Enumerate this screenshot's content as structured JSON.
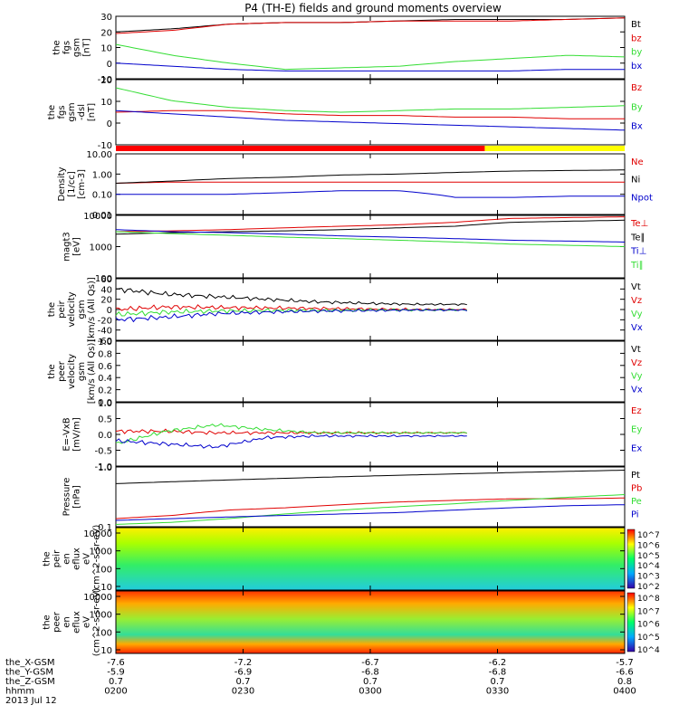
{
  "title": "P4 (TH-E) fields and ground moments overview",
  "colors": {
    "black": "#000000",
    "red": "#e00000",
    "green": "#33dd33",
    "blue": "#0000cc"
  },
  "chart_data": {
    "type": "line",
    "time_axis": {
      "range": [
        "0200",
        "0400"
      ],
      "ticks": [
        "0200",
        "0230",
        "0300",
        "0330",
        "0400"
      ]
    },
    "panels": [
      {
        "id": "fgs-gsm",
        "ylabel_lines": [
          "the",
          "fgs",
          "gsm",
          "[nT]"
        ],
        "ylim": [
          -10,
          30
        ],
        "yticks": [
          "30",
          "20",
          "10",
          "0",
          "-10"
        ],
        "series": [
          {
            "name": "Bt",
            "color": "black",
            "values": [
              20,
              22,
              25,
              26,
              26,
              27,
              28,
              28,
              28,
              29
            ]
          },
          {
            "name": "bz",
            "color": "red",
            "values": [
              19,
              21,
              25,
              26,
              26,
              27,
              27,
              27,
              28,
              29
            ]
          },
          {
            "name": "by",
            "color": "green",
            "values": [
              12,
              5,
              0,
              -4,
              -3,
              -2,
              1,
              3,
              5,
              4
            ]
          },
          {
            "name": "bx",
            "color": "blue",
            "values": [
              0,
              -2,
              -4,
              -5,
              -5,
              -5,
              -5,
              -5,
              -4,
              -4
            ]
          }
        ]
      },
      {
        "id": "fgs-gsm-dsl",
        "ylabel_lines": [
          "the",
          "fgs",
          "gsm",
          "-dsl",
          "[nT]"
        ],
        "ylim": [
          -15,
          25
        ],
        "yticks": [
          "20",
          "10",
          "0",
          "-10"
        ],
        "series": [
          {
            "name": "Bz",
            "color": "red",
            "values": [
              5,
              6,
              6,
              4,
              3,
              3,
              2,
              2,
              1,
              1
            ]
          },
          {
            "name": "By",
            "color": "green",
            "values": [
              20,
              12,
              8,
              6,
              5,
              6,
              7,
              7,
              8,
              9
            ]
          },
          {
            "name": "Bx",
            "color": "blue",
            "values": [
              6,
              4,
              2,
              0,
              -1,
              -2,
              -3,
              -4,
              -5,
              -6
            ]
          }
        ]
      },
      {
        "id": "density",
        "ylabel_lines": [
          "Density",
          "[1/cc]",
          "[cm-3]"
        ],
        "ylim_log": [
          0.01,
          10
        ],
        "yticks": [
          "10.00",
          "1.00",
          "0.10",
          "0.01"
        ],
        "series": [
          {
            "name": "Ne",
            "color": "red",
            "values": [
              0.35,
              0.4,
              0.4,
              0.4,
              0.4,
              0.4,
              0.4,
              0.4,
              0.4,
              0.4
            ]
          },
          {
            "name": "Ni",
            "color": "black",
            "values": [
              0.35,
              0.45,
              0.6,
              0.7,
              0.9,
              1.0,
              1.2,
              1.4,
              1.5,
              1.6
            ]
          },
          {
            "name": "Npot",
            "color": "blue",
            "values": [
              0.1,
              0.1,
              0.1,
              0.12,
              0.15,
              0.15,
              0.07,
              0.07,
              0.08,
              0.08
            ]
          }
        ]
      },
      {
        "id": "temperature",
        "ylabel_lines": [
          "magt3",
          "[eV]"
        ],
        "ylim_log": [
          100,
          10000
        ],
        "yticks": [
          "10000",
          "1000",
          "100"
        ],
        "series": [
          {
            "name": "Te⊥",
            "color": "red",
            "values": [
              3000,
              3200,
              3500,
              4000,
              4500,
              5000,
              6000,
              8000,
              8500,
              9000
            ]
          },
          {
            "name": "Te∥",
            "color": "black",
            "values": [
              2500,
              2800,
              3000,
              3200,
              3500,
              4000,
              4500,
              6000,
              6500,
              7000
            ]
          },
          {
            "name": "Ti⊥",
            "color": "blue",
            "values": [
              3500,
              3000,
              2800,
              2500,
              2200,
              2000,
              1800,
              1600,
              1500,
              1400
            ]
          },
          {
            "name": "Ti∥",
            "color": "green",
            "values": [
              3000,
              2600,
              2300,
              2000,
              1800,
              1600,
              1400,
              1200,
              1100,
              1000
            ]
          }
        ]
      },
      {
        "id": "peir-velocity",
        "ylabel_lines": [
          "the",
          "peir",
          "velocity",
          "gsm",
          "[km/s (All Qs)]"
        ],
        "ylim": [
          -60,
          60
        ],
        "yticks": [
          "60",
          "40",
          "20",
          "0",
          "-20",
          "-40",
          "-60"
        ],
        "series": [
          {
            "name": "Vt",
            "color": "black",
            "values": [
              40,
              30,
              25,
              20,
              15,
              12,
              10,
              10
            ]
          },
          {
            "name": "Vz",
            "color": "red",
            "values": [
              0,
              5,
              4,
              3,
              2,
              1,
              0,
              0
            ]
          },
          {
            "name": "Vy",
            "color": "green",
            "values": [
              -10,
              -5,
              -3,
              -2,
              -2,
              -1,
              -1,
              -1
            ]
          },
          {
            "name": "Vx",
            "color": "blue",
            "values": [
              -20,
              -15,
              -8,
              -5,
              -3,
              -2,
              -1,
              -1
            ]
          }
        ]
      },
      {
        "id": "peer-velocity",
        "ylabel_lines": [
          "the",
          "peer",
          "velocity",
          "gsm",
          "[km/s (All Qs)]"
        ],
        "ylim": [
          0,
          1
        ],
        "yticks": [
          "1.0",
          "0.8",
          "0.6",
          "0.4",
          "0.2",
          "0.0"
        ],
        "series": [
          {
            "name": "Vt",
            "color": "black",
            "values": []
          },
          {
            "name": "Vz",
            "color": "red",
            "values": []
          },
          {
            "name": "Vy",
            "color": "green",
            "values": []
          },
          {
            "name": "Vx",
            "color": "blue",
            "values": []
          }
        ]
      },
      {
        "id": "efield",
        "ylabel_lines": [
          "E=-VxB",
          "[mV/m]"
        ],
        "ylim": [
          -1,
          1
        ],
        "yticks": [
          "1.0",
          "0.5",
          "0.0",
          "-0.5",
          "-1.0"
        ],
        "series": [
          {
            "name": "Ez",
            "color": "red",
            "values": [
              0.1,
              0.1,
              0.05,
              0.05,
              0.05,
              0.05,
              0.05,
              0.05
            ]
          },
          {
            "name": "Ey",
            "color": "green",
            "values": [
              -0.3,
              0.1,
              0.3,
              0.15,
              0.05,
              0.05,
              0.05,
              0.05
            ]
          },
          {
            "name": "Ex",
            "color": "blue",
            "values": [
              -0.2,
              -0.3,
              -0.4,
              -0.1,
              -0.05,
              -0.05,
              -0.05,
              -0.05
            ]
          }
        ]
      },
      {
        "id": "pressure",
        "ylabel_lines": [
          "Pressure",
          "[nPa]"
        ],
        "ylim_log": [
          0.1,
          1.2
        ],
        "yticks": [
          "1.0",
          "0.1"
        ],
        "series": [
          {
            "name": "Pt",
            "color": "black",
            "values": [
              0.6,
              0.65,
              0.7,
              0.75,
              0.8,
              0.85,
              0.9,
              0.95,
              1.0,
              1.05
            ]
          },
          {
            "name": "Pb",
            "color": "red",
            "values": [
              0.14,
              0.16,
              0.2,
              0.22,
              0.25,
              0.28,
              0.3,
              0.32,
              0.32,
              0.33
            ]
          },
          {
            "name": "Pe",
            "color": "green",
            "values": [
              0.11,
              0.12,
              0.14,
              0.17,
              0.2,
              0.23,
              0.26,
              0.3,
              0.34,
              0.38
            ]
          },
          {
            "name": "Pi",
            "color": "blue",
            "values": [
              0.13,
              0.14,
              0.15,
              0.16,
              0.17,
              0.18,
              0.2,
              0.22,
              0.24,
              0.25
            ]
          }
        ]
      }
    ],
    "spectrograms": [
      {
        "id": "peir-eflux",
        "ylabel_lines": [
          "the",
          "peir",
          "en",
          "eflux",
          "eV",
          "(cm^2-s-sr-eV)"
        ],
        "yticks": [
          "10000",
          "1000",
          "100",
          "10"
        ],
        "colorbar_ticks": [
          "10^7",
          "10^6",
          "10^5",
          "10^4",
          "10^3",
          "10^2"
        ]
      },
      {
        "id": "peer-eflux",
        "ylabel_lines": [
          "the",
          "peer",
          "en",
          "eflux",
          "eV",
          "(cm^2-s-sr-eV)"
        ],
        "yticks": [
          "10000",
          "1000",
          "100",
          "10"
        ],
        "colorbar_ticks": [
          "10^8",
          "10^7",
          "10^6",
          "10^5",
          "10^4"
        ]
      }
    ],
    "footer": {
      "rows": [
        {
          "label": "the_X-GSM",
          "values": [
            "-7.6",
            "-7.2",
            "-6.7",
            "-6.2",
            "-5.7"
          ]
        },
        {
          "label": "the_Y-GSM",
          "values": [
            "-5.9",
            "-6.9",
            "-6.8",
            "-6.8",
            "-6.6"
          ]
        },
        {
          "label": "the_Z-GSM",
          "values": [
            "0.7",
            "0.7",
            "0.7",
            "0.7",
            "0.8"
          ]
        },
        {
          "label": "hhmm",
          "values": [
            "0200",
            "0230",
            "0300",
            "0330",
            "0400"
          ]
        }
      ],
      "date": "2013 Jul 12"
    }
  }
}
